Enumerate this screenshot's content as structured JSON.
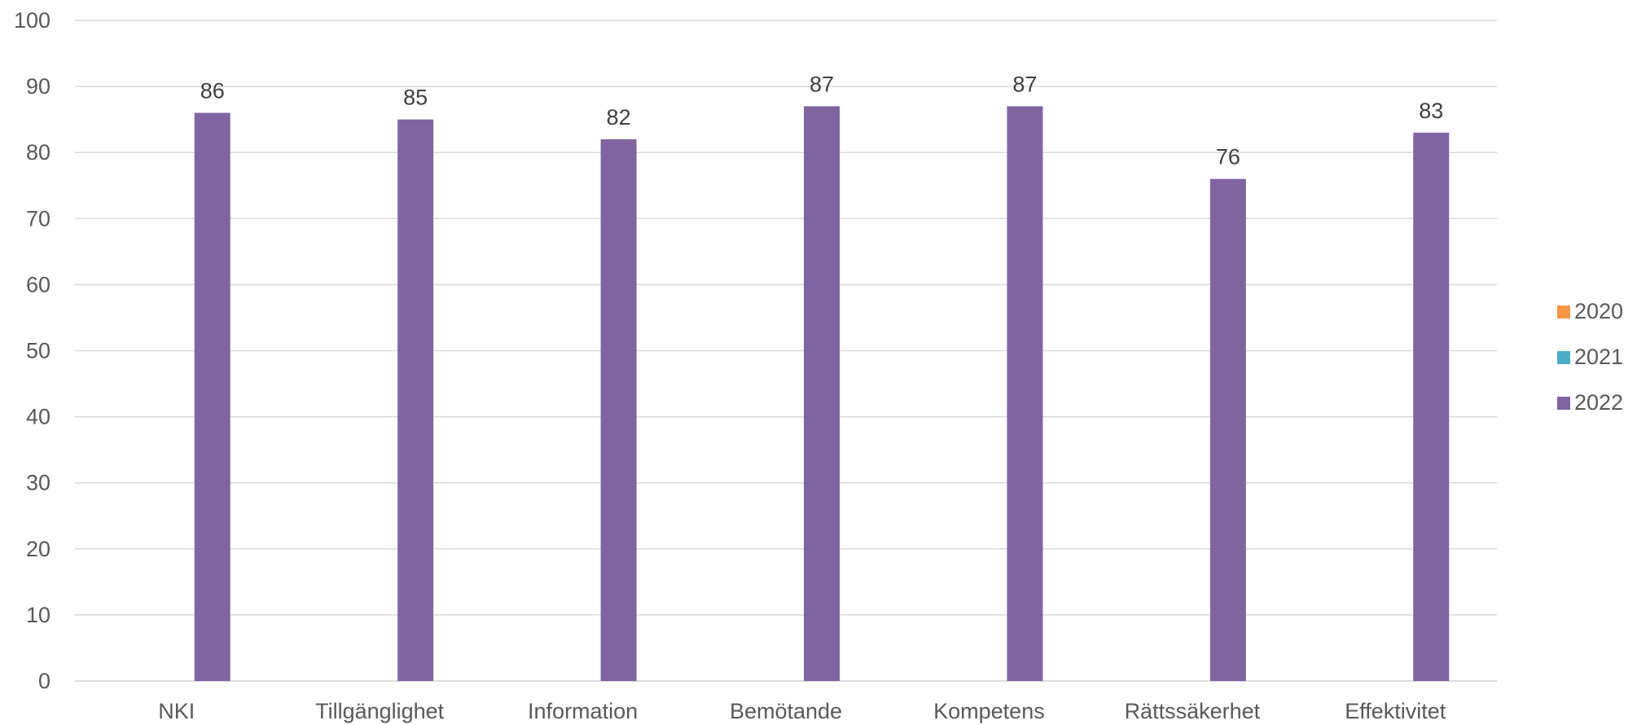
{
  "chart_data": {
    "type": "bar",
    "categories": [
      "NKI",
      "Tillgänglighet",
      "Information",
      "Bemötande",
      "Kompetens",
      "Rättssäkerhet",
      "Effektivitet"
    ],
    "series": [
      {
        "name": "2020",
        "color": "#f79646",
        "values": [
          null,
          null,
          null,
          null,
          null,
          null,
          null
        ]
      },
      {
        "name": "2021",
        "color": "#4bacc6",
        "values": [
          null,
          null,
          null,
          null,
          null,
          null,
          null
        ]
      },
      {
        "name": "2022",
        "color": "#8064a2",
        "values": [
          86,
          85,
          82,
          87,
          87,
          76,
          83
        ]
      }
    ],
    "data_labels": [
      "86",
      "85",
      "82",
      "87",
      "87",
      "76",
      "83"
    ],
    "ylim": [
      0,
      100
    ],
    "yticks": [
      "0",
      "10",
      "20",
      "30",
      "40",
      "50",
      "60",
      "70",
      "80",
      "90",
      "100"
    ],
    "grid": true,
    "legend_position": "right",
    "title": "",
    "xlabel": "",
    "ylabel": ""
  }
}
